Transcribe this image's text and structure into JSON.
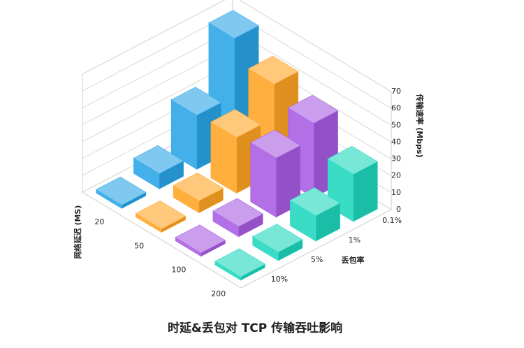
{
  "chart_data": {
    "type": "bar3d",
    "title": "时延&丢包对 TCP 传输吞吐影响",
    "x_label": "网络延迟 (MS)",
    "x_categories": [
      "20",
      "50",
      "100",
      "200"
    ],
    "y_label": "丢包率",
    "y_categories": [
      "0.1%",
      "1%",
      "5%",
      "10%"
    ],
    "z_label": "传输速率 (Mbps)",
    "zlim": [
      0,
      70
    ],
    "zticks": [
      0,
      10,
      20,
      30,
      40,
      50,
      60,
      70
    ],
    "series": [
      {
        "color": "#2aa5e8",
        "values": [
          66,
          32,
          9,
          2
        ]
      },
      {
        "color": "#ffa424",
        "values": [
          53,
          33,
          7,
          2
        ]
      },
      {
        "color": "#a95ce2",
        "values": [
          44,
          35,
          6,
          2
        ]
      },
      {
        "color": "#1fd8bf",
        "values": [
          28,
          15,
          5,
          2
        ]
      }
    ]
  }
}
